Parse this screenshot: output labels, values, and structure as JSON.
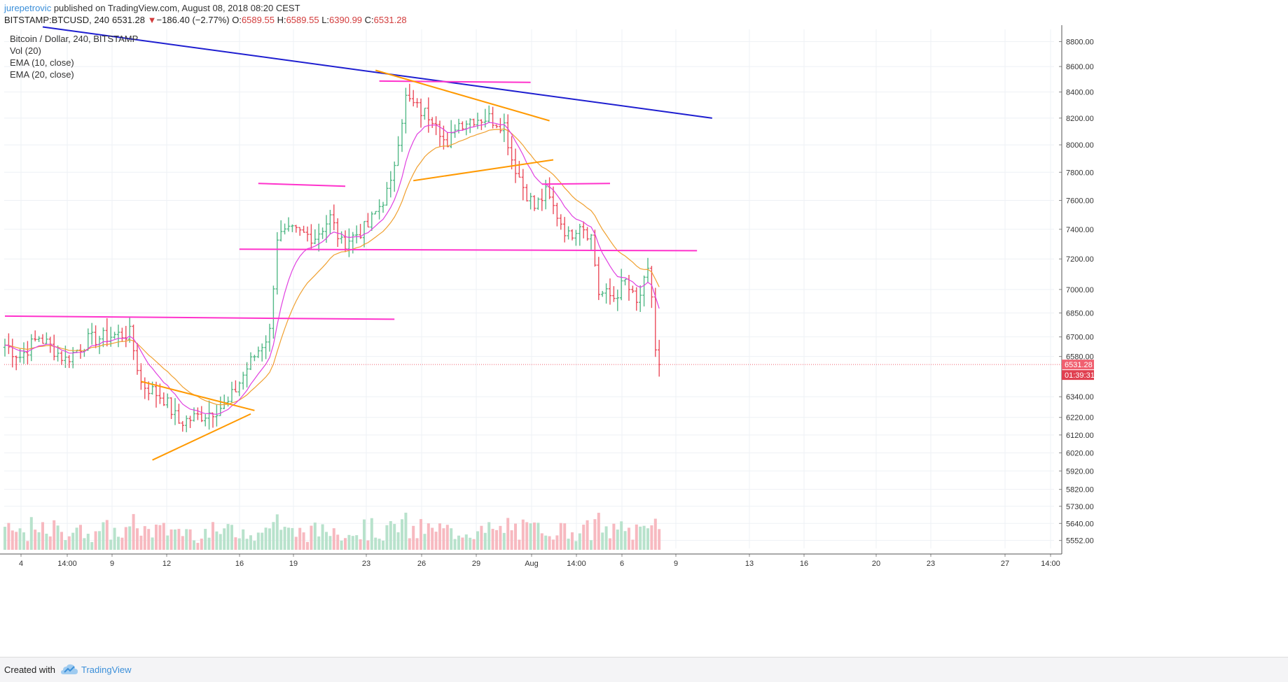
{
  "header": {
    "author": "jurepetrovic",
    "published_text": " published on TradingView.com, August 08, 2018 08:20 CEST",
    "symbol": "BITSTAMP:BTCUSD, 240",
    "last": "6531.28",
    "arrow": "▼",
    "change": "−186.40 (−2.77%)",
    "o_label": "O:",
    "o_value": "6589.55",
    "h_label": "H:",
    "h_value": "6589.55",
    "l_label": "L:",
    "l_value": "6390.99",
    "c_label": "C:",
    "c_value": "6531.28"
  },
  "legend": {
    "title": "Bitcoin / Dollar, 240, BITSTAMP",
    "vol": "Vol (20)",
    "ema10": "EMA (10, close)",
    "ema20": "EMA (20, close)"
  },
  "footer": {
    "created_with": "Created with",
    "brand": "TradingView"
  },
  "colors": {
    "up": "#53b987",
    "down": "#eb4d5c",
    "ema10": "#e040e0",
    "ema20": "#f0a030",
    "trend_blue": "#1e1ed0",
    "level_magenta": "#ff33cc",
    "pattern_orange": "#ff9900",
    "last_price_tag": "#f06070",
    "timer_tag": "#e04050"
  },
  "chart_data": {
    "type": "candlestick",
    "title": "Bitcoin / Dollar, 240, BITSTAMP",
    "price_axis": {
      "scale": "log",
      "ticks": [
        8800,
        8600,
        8400,
        8200,
        8000,
        7800,
        7600,
        7400,
        7200,
        7000,
        6850,
        6700,
        6580,
        6340,
        6220,
        6120,
        6020,
        5920,
        5820,
        5730,
        5640,
        5552
      ]
    },
    "time_axis": {
      "ticks": [
        "4",
        "14:00",
        "9",
        "12",
        "16",
        "19",
        "23",
        "26",
        "29",
        "Aug",
        "14:00",
        "6",
        "9",
        "13",
        "16",
        "20",
        "23",
        "27",
        "14:00"
      ]
    },
    "last_price": "6531.28",
    "countdown": "01:39:31",
    "anchors": [
      {
        "i": 0,
        "p": 6650
      },
      {
        "i": 4,
        "p": 6580
      },
      {
        "i": 9,
        "p": 6700
      },
      {
        "i": 16,
        "p": 6560
      },
      {
        "i": 22,
        "p": 6680
      },
      {
        "i": 29,
        "p": 6710
      },
      {
        "i": 33,
        "p": 6720
      },
      {
        "i": 36,
        "p": 6420
      },
      {
        "i": 42,
        "p": 6330
      },
      {
        "i": 46,
        "p": 6190
      },
      {
        "i": 53,
        "p": 6240
      },
      {
        "i": 59,
        "p": 6300
      },
      {
        "i": 64,
        "p": 6510
      },
      {
        "i": 70,
        "p": 6730
      },
      {
        "i": 72,
        "p": 7350
      },
      {
        "i": 76,
        "p": 7380
      },
      {
        "i": 82,
        "p": 7350
      },
      {
        "i": 86,
        "p": 7480
      },
      {
        "i": 89,
        "p": 7300
      },
      {
        "i": 96,
        "p": 7420
      },
      {
        "i": 102,
        "p": 7700
      },
      {
        "i": 104,
        "p": 8050
      },
      {
        "i": 106,
        "p": 8350
      },
      {
        "i": 110,
        "p": 8250
      },
      {
        "i": 114,
        "p": 8200
      },
      {
        "i": 117,
        "p": 7950
      },
      {
        "i": 119,
        "p": 8150
      },
      {
        "i": 124,
        "p": 8200
      },
      {
        "i": 128,
        "p": 8200
      },
      {
        "i": 132,
        "p": 8150
      },
      {
        "i": 134,
        "p": 7900
      },
      {
        "i": 137,
        "p": 7700
      },
      {
        "i": 140,
        "p": 7550
      },
      {
        "i": 143,
        "p": 7650
      },
      {
        "i": 146,
        "p": 7500
      },
      {
        "i": 149,
        "p": 7350
      },
      {
        "i": 152,
        "p": 7450
      },
      {
        "i": 155,
        "p": 7350
      },
      {
        "i": 157,
        "p": 6980
      },
      {
        "i": 161,
        "p": 6950
      },
      {
        "i": 164,
        "p": 7050
      },
      {
        "i": 167,
        "p": 6900
      },
      {
        "i": 170,
        "p": 7100
      },
      {
        "i": 171,
        "p": 6960
      },
      {
        "i": 172,
        "p": 6620
      },
      {
        "i": 173,
        "p": 6531
      }
    ],
    "series": [
      {
        "name": "Vol (20)",
        "type": "volume-bars"
      },
      {
        "name": "EMA (10, close)",
        "type": "line"
      },
      {
        "name": "EMA (20, close)",
        "type": "line"
      }
    ],
    "drawings": [
      {
        "kind": "trendline",
        "color": "blue",
        "from": {
          "i": 10,
          "p": 8920
        },
        "to": {
          "i": 187,
          "p": 8200
        }
      },
      {
        "kind": "horizontal",
        "color": "magenta",
        "from": {
          "i": 0,
          "p": 6830
        },
        "to": {
          "i": 103,
          "p": 6810
        }
      },
      {
        "kind": "horizontal",
        "color": "magenta",
        "from": {
          "i": 62,
          "p": 7265
        },
        "to": {
          "i": 183,
          "p": 7255
        }
      },
      {
        "kind": "horizontal",
        "color": "magenta",
        "from": {
          "i": 67,
          "p": 7720
        },
        "to": {
          "i": 90,
          "p": 7700
        }
      },
      {
        "kind": "horizontal",
        "color": "magenta",
        "from": {
          "i": 99,
          "p": 8485
        },
        "to": {
          "i": 139,
          "p": 8475
        }
      },
      {
        "kind": "horizontal",
        "color": "magenta",
        "from": {
          "i": 142,
          "p": 7715
        },
        "to": {
          "i": 160,
          "p": 7720
        }
      },
      {
        "kind": "trendline",
        "color": "orange",
        "from": {
          "i": 36,
          "p": 6430
        },
        "to": {
          "i": 66,
          "p": 6260
        }
      },
      {
        "kind": "trendline",
        "color": "orange",
        "from": {
          "i": 39,
          "p": 5980
        },
        "to": {
          "i": 65,
          "p": 6240
        }
      },
      {
        "kind": "trendline",
        "color": "orange",
        "from": {
          "i": 98,
          "p": 8570
        },
        "to": {
          "i": 144,
          "p": 8180
        }
      },
      {
        "kind": "trendline",
        "color": "orange",
        "from": {
          "i": 108,
          "p": 7740
        },
        "to": {
          "i": 145,
          "p": 7890
        }
      }
    ]
  }
}
